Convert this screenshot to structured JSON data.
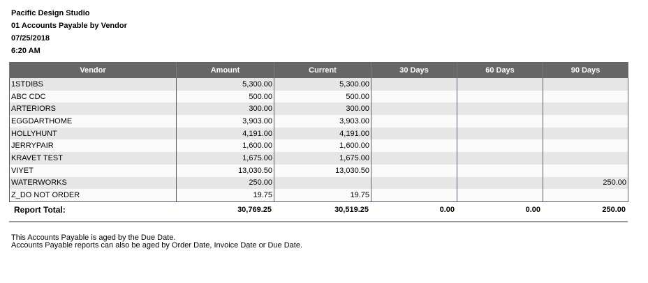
{
  "header": {
    "company": "Pacific Design Studio",
    "report_title": "01 Accounts Payable by Vendor",
    "date": "07/25/2018",
    "time": "6:20 AM"
  },
  "table": {
    "columns": [
      "Vendor",
      "Amount",
      "Current",
      "30 Days",
      "60 Days",
      "90 Days"
    ],
    "rows": [
      {
        "vendor": "1STDIBS",
        "amount": "5,300.00",
        "current": "5,300.00",
        "d30": "",
        "d60": "",
        "d90": ""
      },
      {
        "vendor": "ABC CDC",
        "amount": "500.00",
        "current": "500.00",
        "d30": "",
        "d60": "",
        "d90": ""
      },
      {
        "vendor": "ARTERIORS",
        "amount": "300.00",
        "current": "300.00",
        "d30": "",
        "d60": "",
        "d90": ""
      },
      {
        "vendor": "EGGDARTHOME",
        "amount": "3,903.00",
        "current": "3,903.00",
        "d30": "",
        "d60": "",
        "d90": ""
      },
      {
        "vendor": "HOLLYHUNT",
        "amount": "4,191.00",
        "current": "4,191.00",
        "d30": "",
        "d60": "",
        "d90": ""
      },
      {
        "vendor": "JERRYPAIR",
        "amount": "1,600.00",
        "current": "1,600.00",
        "d30": "",
        "d60": "",
        "d90": ""
      },
      {
        "vendor": "KRAVET TEST",
        "amount": "1,675.00",
        "current": "1,675.00",
        "d30": "",
        "d60": "",
        "d90": ""
      },
      {
        "vendor": "VIYET",
        "amount": "13,030.50",
        "current": "13,030.50",
        "d30": "",
        "d60": "",
        "d90": ""
      },
      {
        "vendor": "WATERWORKS",
        "amount": "250.00",
        "current": "",
        "d30": "",
        "d60": "",
        "d90": "250.00"
      },
      {
        "vendor": "Z_DO NOT ORDER",
        "amount": "19.75",
        "current": "19.75",
        "d30": "",
        "d60": "",
        "d90": ""
      }
    ]
  },
  "totals": {
    "label": "Report Total:",
    "amount": "30,769.25",
    "current": "30,519.25",
    "d30": "0.00",
    "d60": "0.00",
    "d90": "250.00"
  },
  "notes": [
    "This Accounts Payable is aged by the Due Date.",
    "Accounts Payable reports can also be aged by Order Date, Invoice Date or Due Date."
  ]
}
